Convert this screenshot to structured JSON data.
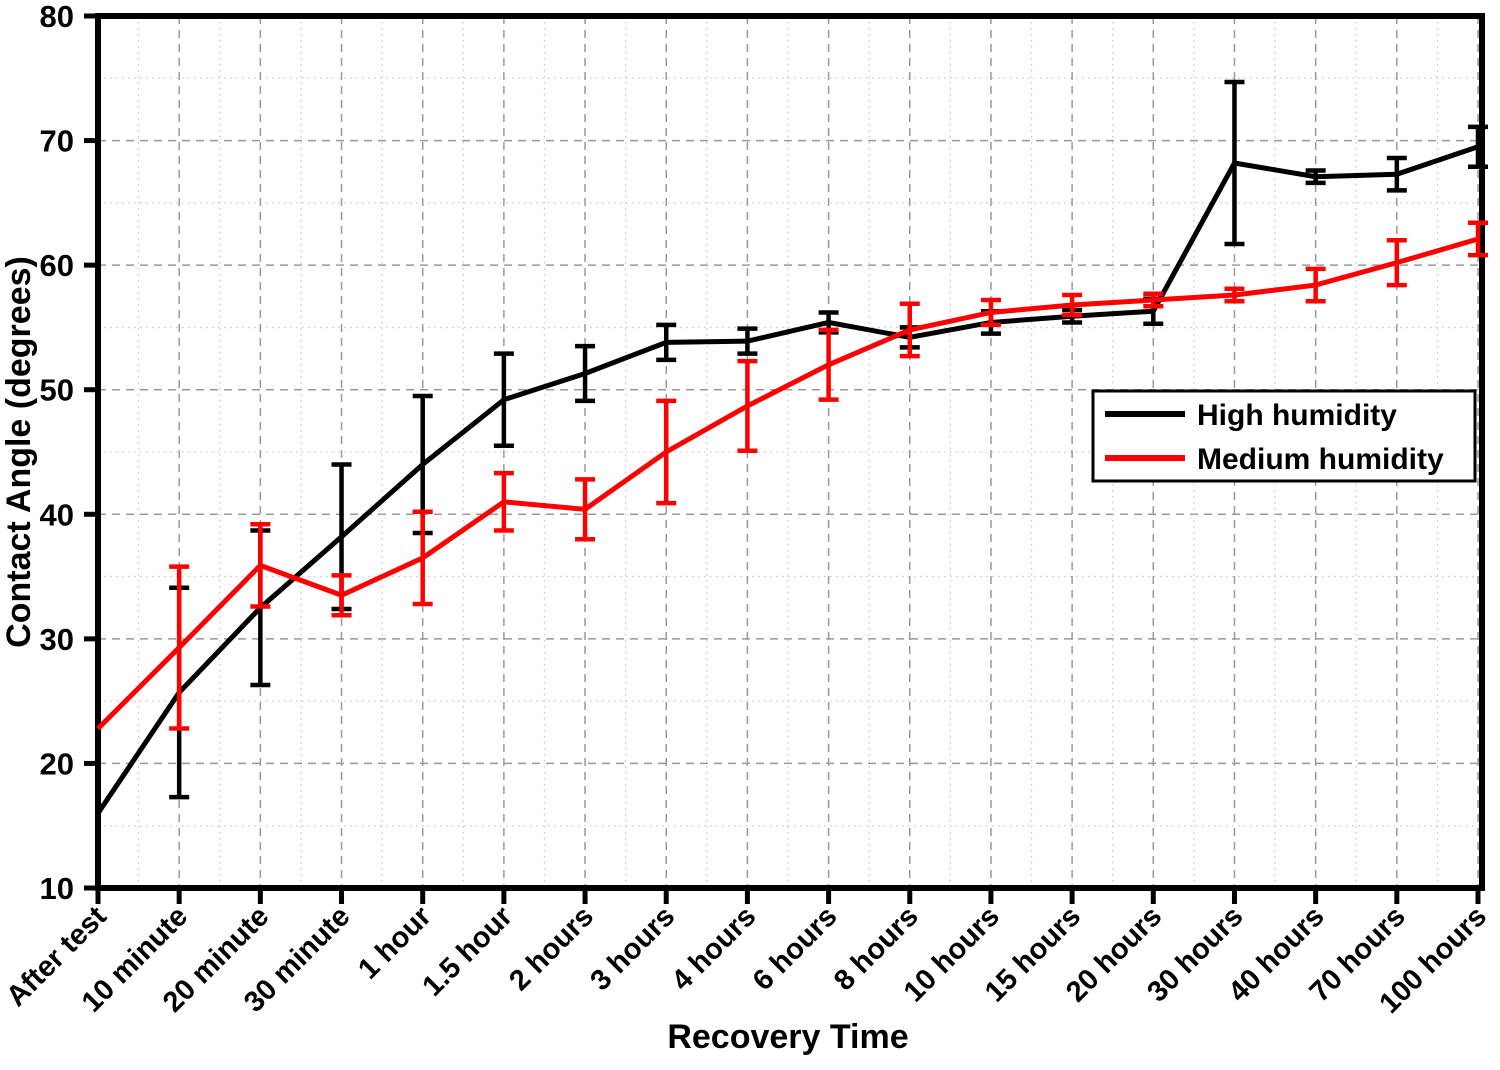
{
  "chart_data": {
    "type": "line",
    "title": "",
    "xlabel": "Recovery Time",
    "ylabel": "Contact Angle (degrees)",
    "categories": [
      "After test",
      "10 minute",
      "20 minute",
      "30 minute",
      "1 hour",
      "1.5 hour",
      "2 hours",
      "3 hours",
      "4 hours",
      "6 hours",
      "8 hours",
      "10 hours",
      "15 hours",
      "20 hours",
      "30 hours",
      "40 hours",
      "70 hours",
      "100 hours"
    ],
    "series": [
      {
        "name": "High humidity",
        "color": "#000000",
        "values": [
          16.0,
          25.7,
          32.5,
          38.2,
          44.0,
          49.2,
          51.3,
          53.8,
          53.9,
          55.4,
          54.2,
          55.4,
          55.9,
          56.3,
          68.2,
          67.1,
          67.3,
          69.5
        ],
        "errors": [
          0,
          8.4,
          6.2,
          5.8,
          5.5,
          3.7,
          2.2,
          1.4,
          1.0,
          0.8,
          0.8,
          0.9,
          0.5,
          1.0,
          6.5,
          0.5,
          1.3,
          1.6
        ]
      },
      {
        "name": "Medium humidity",
        "color": "#ff0000",
        "values": [
          22.8,
          29.3,
          35.9,
          33.5,
          36.5,
          41.0,
          40.4,
          45.0,
          48.7,
          52.0,
          54.8,
          56.2,
          56.8,
          57.2,
          57.6,
          58.4,
          60.2,
          62.1
        ],
        "errors": [
          0,
          6.5,
          3.3,
          1.6,
          3.7,
          2.3,
          2.4,
          4.1,
          3.6,
          2.8,
          2.1,
          1.0,
          0.8,
          0.5,
          0.5,
          1.3,
          1.8,
          1.3
        ]
      }
    ],
    "ylim": [
      10,
      80
    ],
    "y_major_ticks": [
      10,
      20,
      30,
      40,
      50,
      60,
      70,
      80
    ],
    "y_minor_step": 5,
    "grid": {
      "horizontal_major": "dashed at every 10 degrees",
      "horizontal_minor": "dotted at every 5 degrees",
      "vertical_major": "dashed at every category",
      "vertical_minor": "dotted between categories"
    },
    "legend_position": "right-middle",
    "error_bars": true
  }
}
